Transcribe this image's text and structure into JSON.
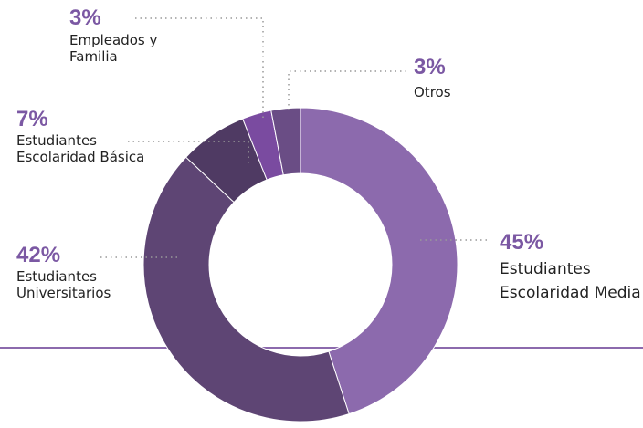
{
  "chart_data": {
    "type": "donut",
    "categories": [
      "Estudiantes\nEscolaridad Media",
      "Estudiantes\nUniversitarios",
      "Estudiantes\nEscolaridad Básica",
      "Empleados y\nFamilia",
      "Otros"
    ],
    "values": [
      45,
      42,
      7,
      3,
      3
    ],
    "value_labels": [
      "45%",
      "42%",
      "7%",
      "3%",
      "3%"
    ],
    "colors": [
      "#8c6aad",
      "#5e4574",
      "#4f3a63",
      "#7a4ba0",
      "#6a4d85"
    ]
  }
}
